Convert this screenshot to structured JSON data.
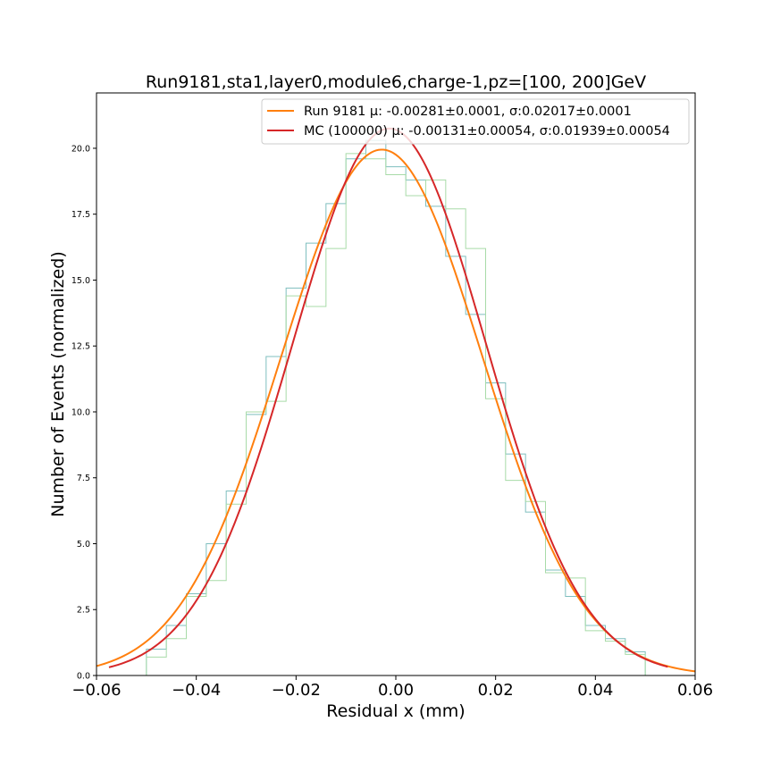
{
  "chart_data": {
    "type": "line",
    "title": "Run9181,sta1,layer0,module6,charge-1,pz=[100, 200]GeV",
    "xlabel": "Residual x (mm)",
    "ylabel": "Number of Events (normalized)",
    "xlim": [
      -0.06,
      0.06
    ],
    "ylim": [
      0,
      22.1
    ],
    "x_ticks": [
      -0.06,
      -0.04,
      -0.02,
      0.0,
      0.02,
      0.04,
      0.06
    ],
    "x_tick_labels": [
      "−0.06",
      "−0.04",
      "−0.02",
      "0.00",
      "0.02",
      "0.04",
      "0.06"
    ],
    "y_ticks": [
      0,
      2.5,
      5,
      7.5,
      10,
      12.5,
      15,
      17.5,
      20
    ],
    "y_tick_labels": [
      "0.0",
      "2.5",
      "5.0",
      "7.5",
      "10.0",
      "12.5",
      "15.0",
      "17.5",
      "20.0"
    ],
    "grid": false,
    "legend_position": "top-right",
    "histograms": [
      {
        "color": "#7fbfbf",
        "bin_edges": [
          -0.05,
          -0.046,
          -0.042,
          -0.038,
          -0.034,
          -0.03,
          -0.026,
          -0.022,
          -0.018,
          -0.014,
          -0.01,
          -0.006,
          -0.002,
          0.002,
          0.006,
          0.01,
          0.014,
          0.018,
          0.022,
          0.026,
          0.03,
          0.034,
          0.038,
          0.042,
          0.046,
          0.05
        ],
        "values": [
          1.0,
          1.9,
          3.1,
          5.0,
          7.0,
          9.9,
          12.1,
          14.7,
          16.4,
          17.9,
          19.6,
          20.3,
          19.3,
          18.8,
          17.8,
          15.9,
          13.7,
          11.1,
          8.4,
          6.2,
          4.0,
          3.0,
          1.9,
          1.4,
          0.9
        ]
      },
      {
        "color": "#a8dba8",
        "bin_edges": [
          -0.05,
          -0.046,
          -0.042,
          -0.038,
          -0.034,
          -0.03,
          -0.026,
          -0.022,
          -0.018,
          -0.014,
          -0.01,
          -0.006,
          -0.002,
          0.002,
          0.006,
          0.01,
          0.014,
          0.018,
          0.022,
          0.026,
          0.03,
          0.034,
          0.038,
          0.042,
          0.046,
          0.05
        ],
        "values": [
          0.7,
          1.4,
          3.0,
          3.6,
          6.5,
          10.0,
          10.4,
          14.4,
          14.0,
          16.2,
          19.8,
          19.6,
          19.0,
          18.2,
          18.8,
          17.7,
          16.2,
          10.5,
          7.4,
          6.6,
          3.9,
          3.7,
          1.7,
          1.3,
          0.8
        ]
      }
    ],
    "series": [
      {
        "name": "Run 9181 μ: -0.00281±0.0001, σ:0.02017±0.0001",
        "color": "#ff7f0e",
        "model": "gaussian",
        "amplitude": 19.95,
        "mu": -0.00281,
        "sigma": 0.02017,
        "x_range": [
          -0.06,
          0.06
        ]
      },
      {
        "name": "MC (100000) μ: -0.00131±0.00054, σ:0.01939±0.00054",
        "color": "#d62728",
        "model": "gaussian",
        "amplitude": 20.75,
        "mu": -0.00131,
        "sigma": 0.01939,
        "x_range": [
          -0.0575,
          0.0545
        ]
      }
    ]
  }
}
